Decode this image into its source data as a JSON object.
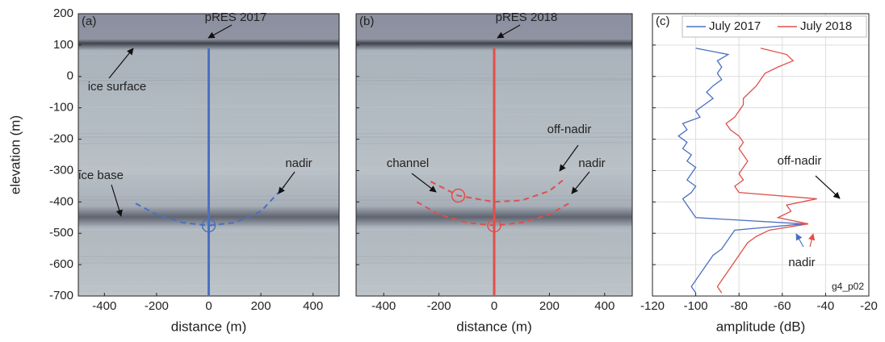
{
  "chart_data": [
    {
      "type": "radargram",
      "panel_label": "(a)",
      "xlabel": "distance (m)",
      "ylabel": "elevation (m)",
      "xlim": [
        -500,
        500
      ],
      "xticks": [
        -400,
        -200,
        0,
        200,
        400
      ],
      "ylim": [
        -700,
        200
      ],
      "yticks": [
        -700,
        -600,
        -500,
        -400,
        -300,
        -200,
        -100,
        0,
        100,
        200
      ],
      "series": [
        {
          "color": "#4a70c0",
          "dash": false,
          "x": [
            0,
            0
          ],
          "values": [
            90,
            -700
          ]
        },
        {
          "color": "#4a70c0",
          "dash": true,
          "x": [
            -280,
            -200,
            -100,
            0,
            100,
            200,
            290
          ],
          "values": [
            -405,
            -440,
            -466,
            -475,
            -466,
            -430,
            -350
          ]
        }
      ],
      "circles": [
        {
          "x": 0,
          "y": -475,
          "color": "#4a70c0"
        }
      ],
      "annotations": [
        "pRES 2017",
        "ice surface",
        "ice base",
        "nadir"
      ]
    },
    {
      "type": "radargram",
      "panel_label": "(b)",
      "xlabel": "distance (m)",
      "xlim": [
        -500,
        500
      ],
      "xticks": [
        -400,
        -200,
        0,
        200,
        400
      ],
      "ylim": [
        -700,
        200
      ],
      "yticks": [
        -700,
        -600,
        -500,
        -400,
        -300,
        -200,
        -100,
        0,
        100,
        200
      ],
      "series": [
        {
          "color": "#e0504a",
          "dash": false,
          "x": [
            0,
            0
          ],
          "values": [
            90,
            -700
          ]
        },
        {
          "color": "#e0504a",
          "dash": true,
          "x": [
            -280,
            -200,
            -100,
            0,
            100,
            200,
            280
          ],
          "values": [
            -400,
            -440,
            -466,
            -475,
            -466,
            -440,
            -400
          ]
        },
        {
          "color": "#e0504a",
          "dash": true,
          "x": [
            -230,
            -130,
            0,
            100,
            200,
            250
          ],
          "values": [
            -335,
            -380,
            -400,
            -395,
            -365,
            -330
          ]
        }
      ],
      "circles": [
        {
          "x": 0,
          "y": -475,
          "color": "#e0504a"
        },
        {
          "x": -130,
          "y": -380,
          "color": "#e0504a"
        }
      ],
      "annotations": [
        "pRES 2018",
        "off-nadir",
        "channel",
        "nadir"
      ]
    },
    {
      "type": "line",
      "panel_label": "(c)",
      "xlabel": "amplitude (dB)",
      "xlim": [
        -120,
        -20
      ],
      "xticks": [
        -120,
        -100,
        -80,
        -60,
        -40,
        -20
      ],
      "ylim": [
        -700,
        200
      ],
      "yticks": [
        -700,
        -600,
        -500,
        -400,
        -300,
        -200,
        -100,
        0,
        100,
        200
      ],
      "grid": true,
      "legend": "top",
      "y": [
        90,
        70,
        50,
        30,
        10,
        -10,
        -30,
        -50,
        -70,
        -90,
        -110,
        -130,
        -150,
        -170,
        -190,
        -210,
        -230,
        -250,
        -270,
        -290,
        -310,
        -330,
        -350,
        -370,
        -390,
        -410,
        -430,
        -450,
        -470,
        -490,
        -510,
        -530,
        -550,
        -570,
        -590,
        -610,
        -630,
        -650,
        -670,
        -690
      ],
      "series": [
        {
          "name": "July 2017",
          "color": "#4a70c0",
          "values": [
            -100,
            -85,
            -90,
            -88,
            -90,
            -88,
            -92,
            -95,
            -92,
            -96,
            -100,
            -98,
            -106,
            -104,
            -108,
            -104,
            -106,
            -102,
            -104,
            -100,
            -102,
            -104,
            -100,
            -102,
            -106,
            -104,
            -102,
            -100,
            -50,
            -82,
            -84,
            -86,
            -88,
            -92,
            -94,
            -96,
            -98,
            -100,
            -102,
            -100
          ]
        },
        {
          "name": "July 2018",
          "color": "#e0504a",
          "values": [
            -70,
            -58,
            -55,
            -62,
            -68,
            -70,
            -72,
            -75,
            -78,
            -78,
            -80,
            -82,
            -86,
            -84,
            -80,
            -78,
            -80,
            -78,
            -76,
            -78,
            -80,
            -78,
            -82,
            -80,
            -44,
            -58,
            -56,
            -62,
            -48,
            -66,
            -72,
            -76,
            -78,
            -80,
            -82,
            -84,
            -86,
            -88,
            -90,
            -88
          ]
        }
      ],
      "annotations": [
        "off-nadir",
        "nadir",
        "g4_p02"
      ]
    }
  ]
}
